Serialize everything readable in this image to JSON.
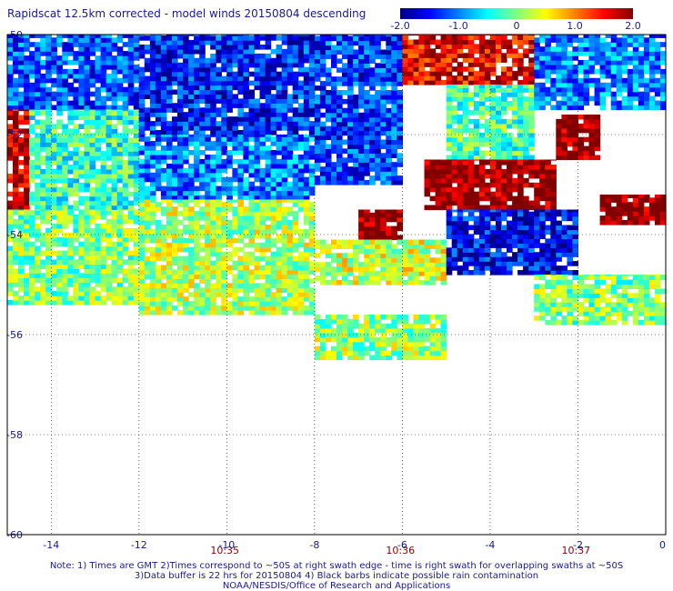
{
  "chart_data": {
    "type": "heatmap",
    "title": "Rapidscat 12.5km corrected - model winds 20150804 descending",
    "colorbar": {
      "min": -2.0,
      "max": 2.0,
      "tick_labels": [
        "-2.0",
        "-1.0",
        "0",
        "1.0",
        "2.0"
      ],
      "colors": [
        "#000080",
        "#0000ff",
        "#0080ff",
        "#00ffff",
        "#80ff80",
        "#ffff00",
        "#ff8000",
        "#ff0000",
        "#800000"
      ]
    },
    "xlim": [
      -15,
      0
    ],
    "ylim": [
      -60,
      -50
    ],
    "xticks": [
      -14,
      -12,
      -10,
      -8,
      -6,
      -4,
      -2,
      0
    ],
    "xtick_labels": [
      "-14",
      "-12",
      "-10",
      "-8",
      "-6",
      "-4",
      "-2",
      "0"
    ],
    "yticks": [
      -50,
      -52,
      -54,
      -56,
      -58,
      -60
    ],
    "ytick_labels": [
      "-50",
      "-52",
      "-54",
      "-56",
      "-58",
      "-60"
    ],
    "grid": true,
    "time_labels": [
      {
        "x": -10,
        "text": "10:35"
      },
      {
        "x": -6,
        "text": "10:36"
      },
      {
        "x": -2,
        "text": "10:37"
      }
    ],
    "regions": [
      {
        "x": [
          -15.0,
          -12.0
        ],
        "y": [
          -51.5,
          -50.0
        ],
        "value": -1.2
      },
      {
        "x": [
          -15.0,
          -14.5
        ],
        "y": [
          -53.5,
          -51.5
        ],
        "value": 1.8
      },
      {
        "x": [
          -14.5,
          -12.0
        ],
        "y": [
          -53.5,
          -51.5
        ],
        "value": -0.3
      },
      {
        "x": [
          -15.0,
          -12.0
        ],
        "y": [
          -55.4,
          -53.5
        ],
        "value": 0.0
      },
      {
        "x": [
          -12.0,
          -8.0
        ],
        "y": [
          -52.0,
          -50.0
        ],
        "value": -1.4
      },
      {
        "x": [
          -12.0,
          -8.0
        ],
        "y": [
          -53.3,
          -52.0
        ],
        "value": -1.0
      },
      {
        "x": [
          -12.0,
          -8.0
        ],
        "y": [
          -55.6,
          -53.3
        ],
        "value": 0.2
      },
      {
        "x": [
          -8.0,
          -6.0
        ],
        "y": [
          -53.0,
          -50.0
        ],
        "value": -1.3
      },
      {
        "x": [
          -7.0,
          -6.0
        ],
        "y": [
          -54.1,
          -53.5
        ],
        "value": 2.0
      },
      {
        "x": [
          -8.0,
          -5.0
        ],
        "y": [
          -55.0,
          -54.1
        ],
        "value": 0.3
      },
      {
        "x": [
          -8.0,
          -5.0
        ],
        "y": [
          -56.5,
          -55.6
        ],
        "value": 0.1
      },
      {
        "x": [
          -6.0,
          -3.0
        ],
        "y": [
          -51.0,
          -50.0
        ],
        "value": 1.6
      },
      {
        "x": [
          -5.0,
          -3.0
        ],
        "y": [
          -52.5,
          -51.0
        ],
        "value": -0.2
      },
      {
        "x": [
          -5.5,
          -2.5
        ],
        "y": [
          -53.5,
          -52.5
        ],
        "value": 2.0
      },
      {
        "x": [
          -2.5,
          -1.5
        ],
        "y": [
          -52.5,
          -51.6
        ],
        "value": 2.0
      },
      {
        "x": [
          -1.5,
          0.0
        ],
        "y": [
          -53.8,
          -53.2
        ],
        "value": 2.0
      },
      {
        "x": [
          -5.0,
          -2.0
        ],
        "y": [
          -54.8,
          -53.5
        ],
        "value": -1.5
      },
      {
        "x": [
          -3.0,
          0.0
        ],
        "y": [
          -55.8,
          -54.8
        ],
        "value": 0.0
      },
      {
        "x": [
          -3.0,
          0.0
        ],
        "y": [
          -51.5,
          -50.0
        ],
        "value": -1.0
      }
    ]
  },
  "notes": [
    "Note: 1) Times are GMT 2)Times correspond to ~50S at right swath edge - time is right swath for overlapping swaths at ~50S",
    "3)Data buffer is 22 hrs for 20150804 4) Black barbs indicate possible rain contamination",
    "NOAA/NESDIS/Office of Research and Applications"
  ]
}
